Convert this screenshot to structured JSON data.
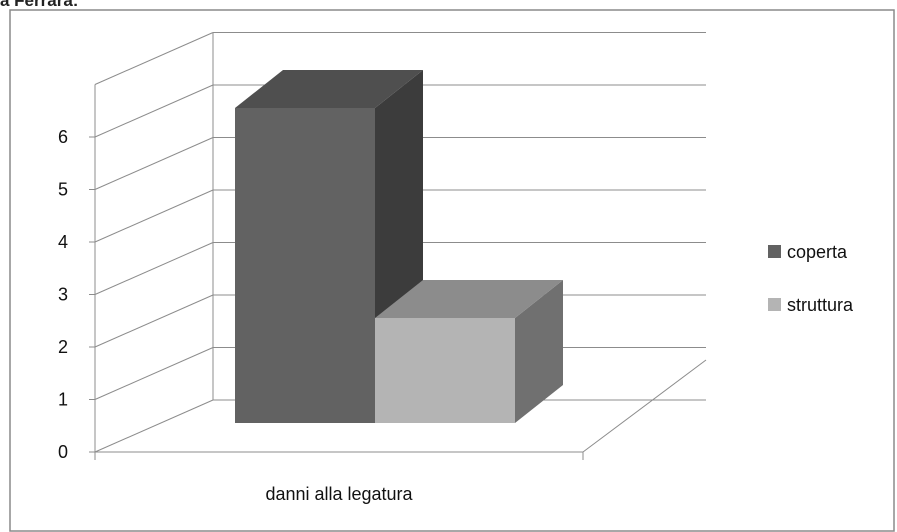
{
  "header": {
    "partial_text": "a Ferrara:"
  },
  "colors": {
    "coperta_front": "#626262",
    "coperta_side": "#3c3c3c",
    "coperta_top": "#4f4f4f",
    "struttura_front": "#b4b4b4",
    "struttura_side": "#707070",
    "struttura_top": "#8c8c8c",
    "grid": "#8c8c8c",
    "border": "#8a8a8a"
  },
  "chart_data": {
    "type": "bar",
    "categories": [
      "danni alla legatura"
    ],
    "series": [
      {
        "name": "coperta",
        "values": [
          6
        ]
      },
      {
        "name": "struttura",
        "values": [
          2
        ]
      }
    ],
    "ylim": [
      0,
      6
    ],
    "yticks": [
      "0",
      "1",
      "2",
      "3",
      "4",
      "5",
      "6"
    ],
    "grid": true,
    "legend_position": "right",
    "three_d": true
  }
}
